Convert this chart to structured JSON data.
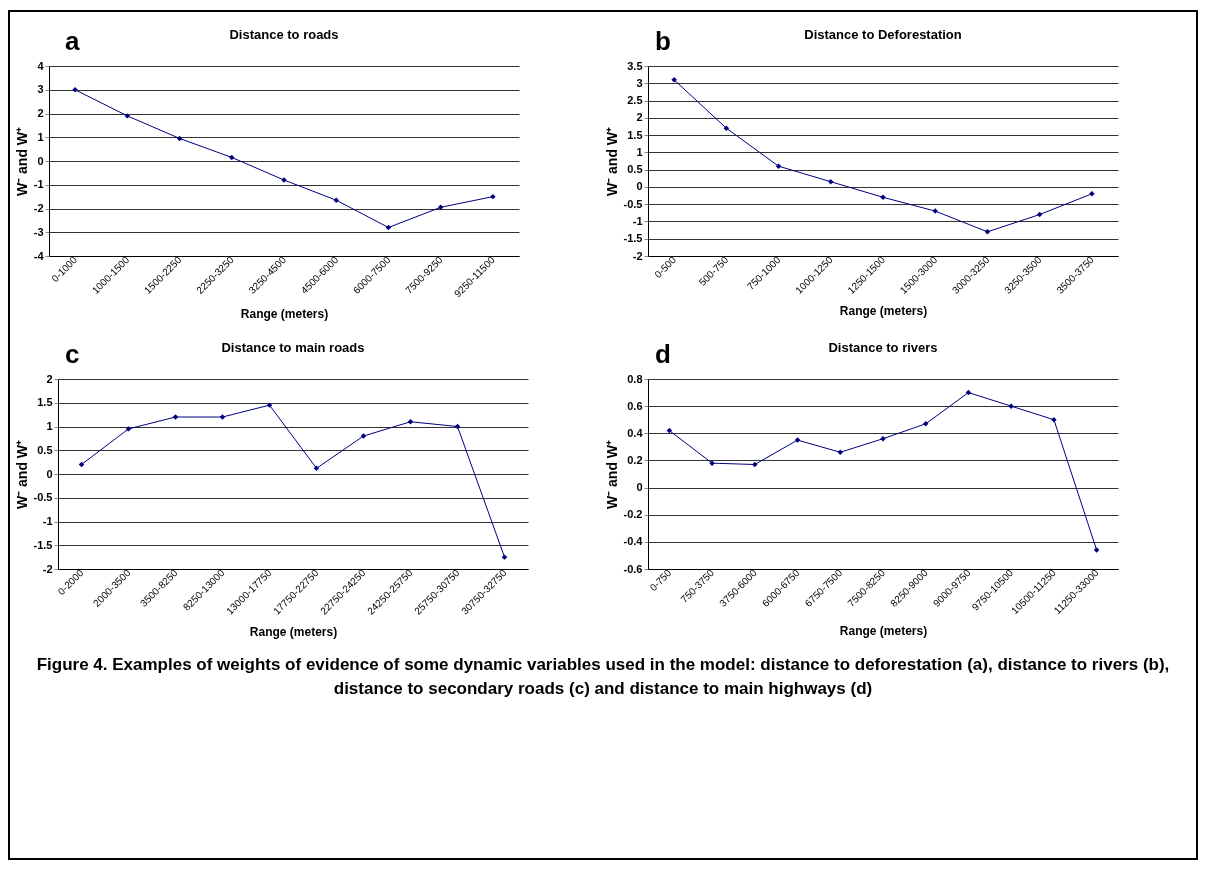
{
  "chart_data": [
    {
      "type": "line",
      "title": "Distance to roads",
      "xlabel": "Range (meters)",
      "ylabel": "W⁻ and W⁺",
      "annotations": [
        "a"
      ],
      "categories": [
        "0-1000",
        "1000-1500",
        "1500-2250",
        "2250-3250",
        "3250-4500",
        "4500-6000",
        "6000-7500",
        "7500-9250",
        "9250-11500"
      ],
      "series": [
        {
          "color": "#000080",
          "values": [
            3.0,
            1.9,
            0.95,
            0.15,
            -0.8,
            -1.65,
            -2.8,
            -1.95,
            -1.5
          ]
        }
      ],
      "ylim": [
        -4,
        4
      ],
      "yticks": [
        -4,
        -3,
        -2,
        -1,
        0,
        1,
        2,
        3,
        4
      ],
      "grid": "y",
      "marker": "diamond",
      "line_style": "solid"
    },
    {
      "type": "line",
      "title": "Distance to Deforestation",
      "xlabel": "Range (meters)",
      "ylabel": "W⁻ and W⁺",
      "annotations": [
        "b"
      ],
      "categories": [
        "0-500",
        "500-750",
        "750-1000",
        "1000-1250",
        "1250-1500",
        "1500-3000",
        "3000-3250",
        "3250-3500",
        "3500-3750"
      ],
      "series": [
        {
          "color": "#000080",
          "values": [
            3.1,
            1.7,
            0.6,
            0.15,
            -0.3,
            -0.7,
            -1.3,
            -0.8,
            -0.2
          ]
        }
      ],
      "ylim": [
        -2,
        3.5
      ],
      "yticks": [
        -2,
        -1.5,
        -1,
        -0.5,
        0,
        0.5,
        1,
        1.5,
        2,
        2.5,
        3,
        3.5
      ],
      "grid": "y",
      "marker": "diamond",
      "line_style": "solid"
    },
    {
      "type": "line",
      "title": "Distance to main roads",
      "xlabel": "Range (meters)",
      "ylabel": "W⁻ and W⁺",
      "annotations": [
        "c"
      ],
      "categories": [
        "0-2000",
        "2000-3500",
        "3500-8250",
        "8250-13000",
        "13000-17750",
        "17750-22750",
        "22750-24250",
        "24250-25750",
        "25750-30750",
        "30750-32750"
      ],
      "series": [
        {
          "color": "#000080",
          "values": [
            0.2,
            0.95,
            1.2,
            1.2,
            1.45,
            0.12,
            0.8,
            1.1,
            1.0,
            -1.75
          ]
        }
      ],
      "ylim": [
        -2,
        2
      ],
      "yticks": [
        -2,
        -1.5,
        -1,
        -0.5,
        0,
        0.5,
        1,
        1.5,
        2
      ],
      "grid": "y",
      "marker": "diamond",
      "line_style": "solid"
    },
    {
      "type": "line",
      "title": "Distance to rivers",
      "xlabel": "Range (meters)",
      "ylabel": "W⁻ and W⁺",
      "annotations": [
        "d",
        "Figure 4. Examples of weights of evidence of some dynamic variables used in the model: distance to deforestation (a), distance to rivers (b), distance to secondary roads (c) and distance to main highways (d)"
      ],
      "categories": [
        "0-750",
        "750-3750",
        "3750-6000",
        "6000-6750",
        "6750-7500",
        "7500-8250",
        "8250-9000",
        "9000-9750",
        "9750-10500",
        "10500-11250",
        "11250-33000"
      ],
      "series": [
        {
          "color": "#000080",
          "values": [
            0.42,
            0.18,
            0.17,
            0.35,
            0.26,
            0.36,
            0.47,
            0.7,
            0.6,
            0.5,
            -0.46
          ]
        }
      ],
      "ylim": [
        -0.6,
        0.8
      ],
      "yticks": [
        -0.6,
        -0.4,
        -0.2,
        0,
        0.2,
        0.4,
        0.6,
        0.8
      ],
      "grid": "y",
      "marker": "diamond",
      "line_style": "solid"
    }
  ]
}
